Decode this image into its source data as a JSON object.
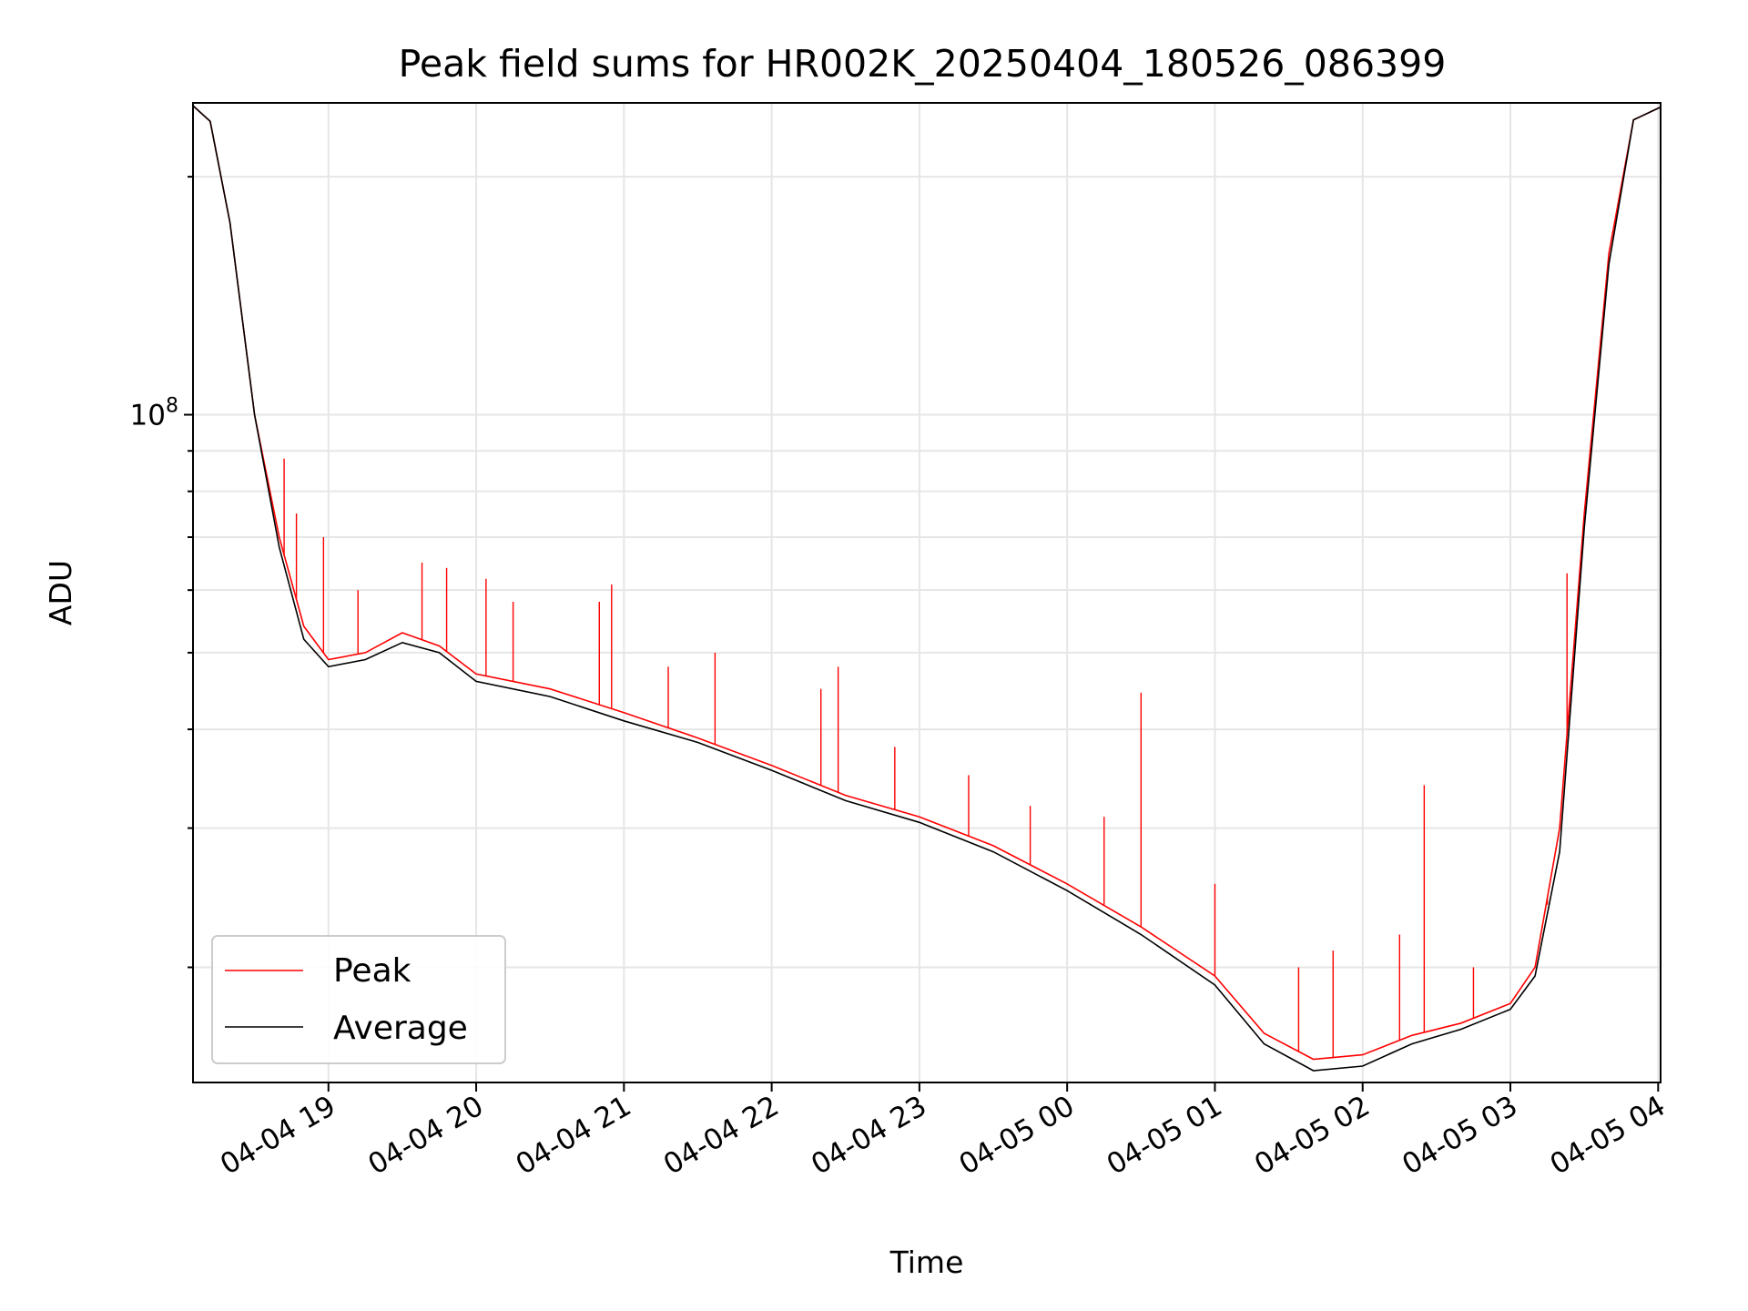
{
  "chart_data": {
    "type": "line",
    "title": "Peak field sums for HR002K_20250404_180526_086399",
    "xlabel": "Time",
    "ylabel": "ADU",
    "x_axis_type": "datetime",
    "xlim": [
      "2025-04-04 18:05",
      "2025-04-05 04:01"
    ],
    "xticks": [
      "04-04 19",
      "04-04 20",
      "04-04 21",
      "04-04 22",
      "04-04 23",
      "04-05 00",
      "04-05 01",
      "04-05 02",
      "04-05 03",
      "04-05 04"
    ],
    "tick_label_rotation_deg": 30,
    "y_scale": "log",
    "ylim": [
      14300000,
      248000000
    ],
    "y_major_tick_label": {
      "base": "10",
      "exponent": "8",
      "value": 100000000
    },
    "y_minor_ticks": [
      20000000,
      30000000,
      40000000,
      50000000,
      60000000,
      70000000,
      80000000,
      90000000,
      200000000
    ],
    "grid": true,
    "legend_position": "lower-left",
    "series": [
      {
        "name": "Peak",
        "color": "#ff0000",
        "x": [
          "2025-04-04 18:05",
          "2025-04-04 18:12",
          "2025-04-04 18:20",
          "2025-04-04 18:30",
          "2025-04-04 18:40",
          "2025-04-04 18:50",
          "2025-04-04 19:00",
          "2025-04-04 19:15",
          "2025-04-04 19:30",
          "2025-04-04 19:45",
          "2025-04-04 20:00",
          "2025-04-04 20:30",
          "2025-04-04 21:00",
          "2025-04-04 21:30",
          "2025-04-04 22:00",
          "2025-04-04 22:30",
          "2025-04-04 23:00",
          "2025-04-04 23:30",
          "2025-04-05 00:00",
          "2025-04-05 00:30",
          "2025-04-05 01:00",
          "2025-04-05 01:20",
          "2025-04-05 01:40",
          "2025-04-05 02:00",
          "2025-04-05 02:20",
          "2025-04-05 02:40",
          "2025-04-05 03:00",
          "2025-04-05 03:10",
          "2025-04-05 03:20",
          "2025-04-05 03:30",
          "2025-04-05 03:40",
          "2025-04-05 03:50",
          "2025-04-05 04:01"
        ],
        "y": [
          246000000,
          235000000,
          175000000,
          100000000,
          70000000,
          54000000,
          49000000,
          50000000,
          53000000,
          51000000,
          47000000,
          45000000,
          42000000,
          39000000,
          36000000,
          33000000,
          31000000,
          28500000,
          25500000,
          22500000,
          19500000,
          16500000,
          15300000,
          15500000,
          16400000,
          17000000,
          18000000,
          20000000,
          30000000,
          75000000,
          160000000,
          236000000,
          245000000
        ]
      },
      {
        "name": "Average",
        "color": "#000000",
        "x": [
          "2025-04-04 18:05",
          "2025-04-04 18:12",
          "2025-04-04 18:20",
          "2025-04-04 18:30",
          "2025-04-04 18:40",
          "2025-04-04 18:50",
          "2025-04-04 19:00",
          "2025-04-04 19:15",
          "2025-04-04 19:30",
          "2025-04-04 19:45",
          "2025-04-04 20:00",
          "2025-04-04 20:30",
          "2025-04-04 21:00",
          "2025-04-04 21:30",
          "2025-04-04 22:00",
          "2025-04-04 22:30",
          "2025-04-04 23:00",
          "2025-04-04 23:30",
          "2025-04-05 00:00",
          "2025-04-05 00:30",
          "2025-04-05 01:00",
          "2025-04-05 01:20",
          "2025-04-05 01:40",
          "2025-04-05 02:00",
          "2025-04-05 02:20",
          "2025-04-05 02:40",
          "2025-04-05 03:00",
          "2025-04-05 03:10",
          "2025-04-05 03:20",
          "2025-04-05 03:30",
          "2025-04-05 03:40",
          "2025-04-05 03:50",
          "2025-04-05 04:01"
        ],
        "y": [
          246000000,
          235000000,
          175000000,
          100000000,
          68000000,
          52000000,
          48000000,
          49000000,
          51500000,
          50000000,
          46000000,
          44000000,
          41000000,
          38500000,
          35500000,
          32500000,
          30500000,
          28000000,
          25000000,
          22000000,
          19000000,
          16000000,
          14800000,
          15000000,
          16000000,
          16700000,
          17700000,
          19500000,
          28000000,
          72000000,
          155000000,
          236000000,
          245000000
        ]
      }
    ],
    "peak_spikes": {
      "x": [
        "2025-04-04 18:42",
        "2025-04-04 18:47",
        "2025-04-04 18:58",
        "2025-04-04 19:12",
        "2025-04-04 19:38",
        "2025-04-04 19:48",
        "2025-04-04 20:04",
        "2025-04-04 20:15",
        "2025-04-04 20:50",
        "2025-04-04 20:55",
        "2025-04-04 21:18",
        "2025-04-04 21:37",
        "2025-04-04 22:20",
        "22:27",
        "2025-04-04 22:50",
        "2025-04-04 23:20",
        "2025-04-04 23:45",
        "2025-04-05 00:15",
        "2025-04-05 00:30",
        "2025-04-05 01:00",
        "2025-04-05 01:34",
        "2025-04-05 01:48",
        "2025-04-05 02:15",
        "2025-04-05 02:25",
        "2025-04-05 02:45",
        "2025-04-05 03:15",
        "2025-04-05 03:23"
      ],
      "y": [
        88000000,
        75000000,
        70000000,
        60000000,
        65000000,
        64000000,
        62000000,
        58000000,
        58000000,
        61000000,
        48000000,
        50000000,
        45000000,
        48000000,
        38000000,
        35000000,
        32000000,
        31000000,
        44500000,
        25500000,
        20000000,
        21000000,
        22000000,
        34000000,
        20000000,
        24000000,
        63000000
      ]
    }
  }
}
